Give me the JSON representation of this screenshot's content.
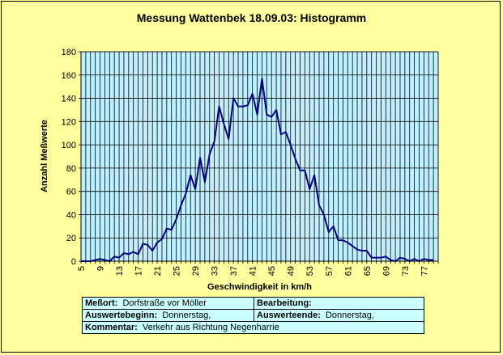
{
  "chart_data": {
    "type": "line",
    "title": "Messung Wattenbek 18.09.03: Histogramm",
    "xlabel": "Geschwindigkeit in km/h",
    "ylabel": "Anzahl Meßwerte",
    "ylim": [
      0,
      180
    ],
    "yticks": [
      "0",
      "20",
      "40",
      "60",
      "80",
      "100",
      "120",
      "140",
      "160",
      "180"
    ],
    "xticks": [
      "5",
      "9",
      "13",
      "17",
      "21",
      "25",
      "29",
      "33",
      "37",
      "41",
      "45",
      "49",
      "53",
      "57",
      "61",
      "65",
      "69",
      "73",
      "77"
    ],
    "grid": true,
    "colors": {
      "line": "#000080",
      "plot_bg": "#c0f0ff",
      "grid": "#000000"
    },
    "x": [
      5,
      6,
      7,
      8,
      9,
      10,
      11,
      12,
      13,
      14,
      15,
      16,
      17,
      18,
      19,
      20,
      21,
      22,
      23,
      24,
      25,
      26,
      27,
      28,
      29,
      30,
      31,
      32,
      33,
      34,
      35,
      36,
      37,
      38,
      39,
      40,
      41,
      42,
      43,
      44,
      45,
      46,
      47,
      48,
      49,
      50,
      51,
      52,
      53,
      54,
      55,
      56,
      57,
      58,
      59,
      60,
      61,
      62,
      63,
      64,
      65,
      66,
      67,
      68,
      69,
      70,
      71,
      72,
      73,
      74,
      75,
      76,
      77,
      78,
      79
    ],
    "series": [
      {
        "values": [
          0,
          0,
          0,
          1,
          2,
          1,
          0,
          4,
          3,
          7,
          6,
          8,
          6,
          15,
          14,
          9,
          16,
          19,
          28,
          27,
          36,
          48,
          58,
          74,
          62,
          89,
          68,
          92,
          103,
          133,
          118,
          105,
          140,
          133,
          133,
          134,
          144,
          126,
          157,
          126,
          124,
          130,
          109,
          111,
          100,
          88,
          78,
          78,
          62,
          74,
          48,
          40,
          25,
          30,
          18,
          18,
          16,
          13,
          10,
          9,
          9,
          3,
          3,
          3,
          4,
          1,
          0,
          3,
          2,
          0,
          2,
          0,
          2,
          1,
          1
        ]
      }
    ]
  },
  "info": {
    "messort_label": "Meßort:",
    "messort_value": "Dorfstraße vor Möller",
    "bearbeitung_label": "Bearbeitung:",
    "bearbeitung_value": "",
    "auswertebeginn_label": "Auswertebeginn:",
    "auswertebeginn_value": "Donnerstag,",
    "auswerteende_label": "Auswerteende:",
    "auswerteende_value": "Donnerstag,",
    "kommentar_label": "Kommentar:",
    "kommentar_value": "Verkehr aus Richtung Negenharrie"
  }
}
